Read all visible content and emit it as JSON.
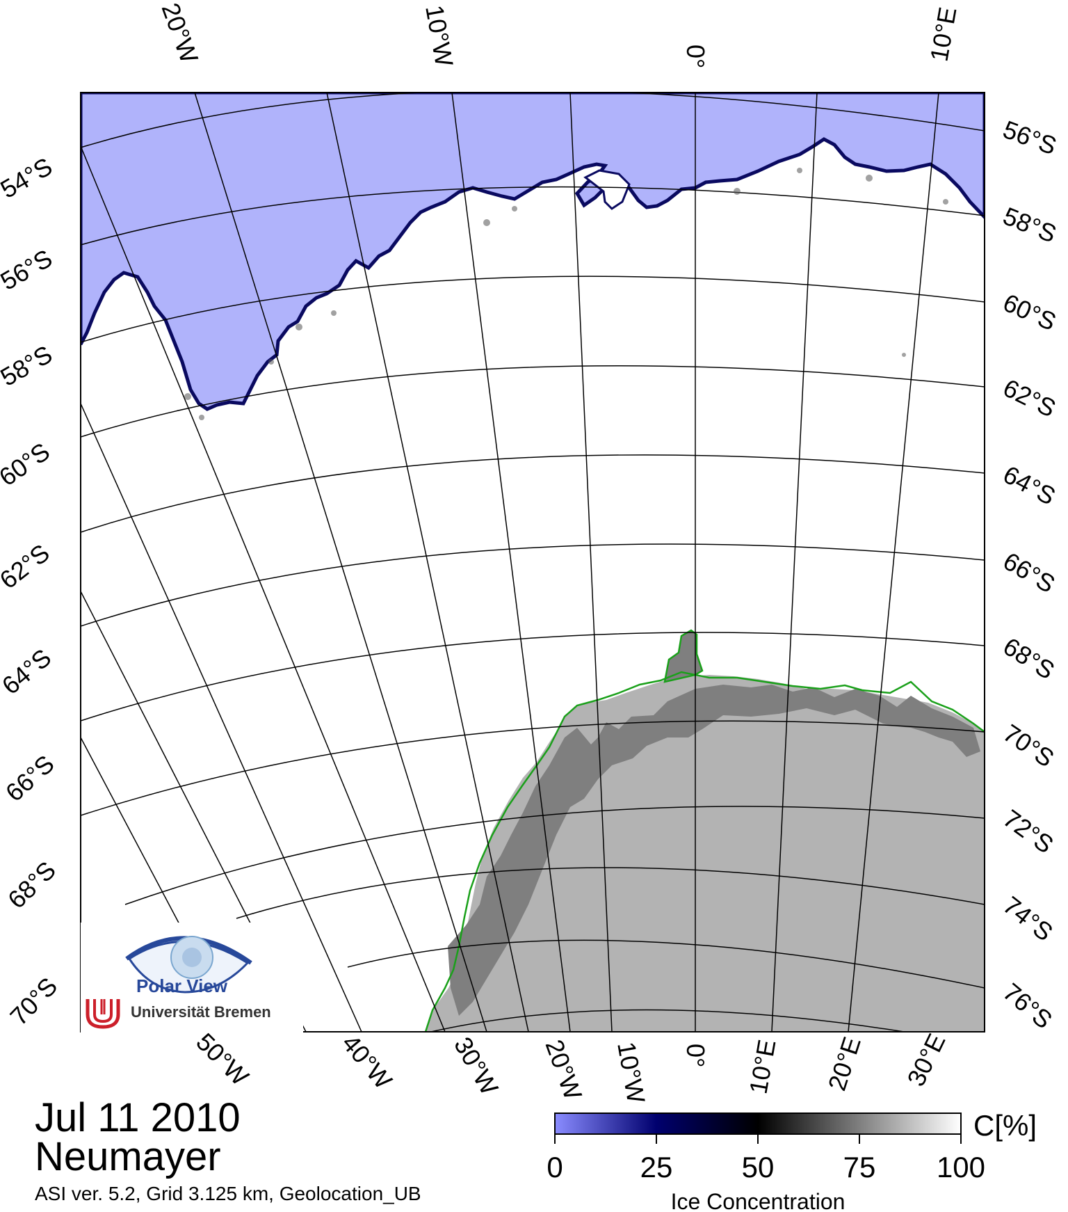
{
  "header_lon_labels": [
    "20°W",
    "10°W",
    "0°",
    "10°E"
  ],
  "left_lat_labels": [
    "54°S",
    "56°S",
    "58°S",
    "60°S",
    "62°S",
    "64°S",
    "66°S",
    "68°S",
    "70°S"
  ],
  "right_lat_labels": [
    "56°S",
    "58°S",
    "60°S",
    "62°S",
    "64°S",
    "66°S",
    "68°S",
    "70°S",
    "72°S",
    "74°S",
    "76°S"
  ],
  "bottom_lon_labels": [
    "50°W",
    "40°W",
    "30°W",
    "20°W",
    "10°W",
    "0°",
    "10°E",
    "20°E",
    "30°E"
  ],
  "title": {
    "date": "Jul 11 2010",
    "station": "Neumayer",
    "subtitle": "ASI ver. 5.2,  Grid 3.125 km, Geolocation_UB"
  },
  "logo": {
    "name": "Polar View",
    "institution": "Universität Bremen"
  },
  "colorbar": {
    "unit": "C[%]",
    "ticks": [
      "0",
      "25",
      "50",
      "75",
      "100"
    ],
    "label": "Ice Concentration",
    "min": 0,
    "max": 100,
    "colors": [
      "#8a8cff",
      "#00006e",
      "#000000",
      "#7f7f7f",
      "#ffffff"
    ]
  },
  "colors": {
    "open_water": "#b0b3fb",
    "sea_ice": "#ffffff",
    "land_ice": "#b3b3b3",
    "shelf_ice": "#7f7f7f",
    "coastline": "#1aa01a",
    "graticule": "#000000"
  }
}
